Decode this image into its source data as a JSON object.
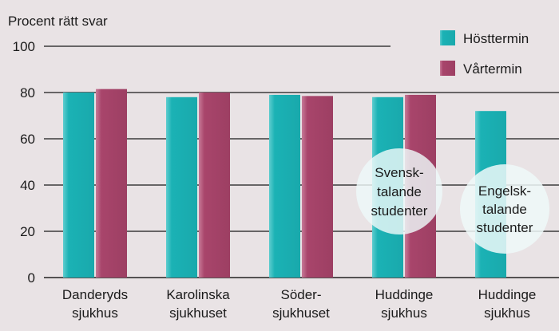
{
  "chart_data": {
    "type": "bar",
    "ylabel": "Procent rätt svar",
    "ylim": [
      0,
      100
    ],
    "yticks": [
      "0",
      "20",
      "40",
      "60",
      "80",
      "100"
    ],
    "categories": [
      [
        "Danderyds",
        "sjukhus"
      ],
      [
        "Karolinska",
        "sjukhuset"
      ],
      [
        "Söder-",
        "sjukhuset"
      ],
      [
        "Huddinge",
        "sjukhus"
      ],
      [
        "Huddinge",
        "sjukhus"
      ]
    ],
    "series": [
      {
        "name": "Hösttermin",
        "color": "#1bb2b5",
        "values": [
          80,
          78,
          79,
          78,
          72
        ]
      },
      {
        "name": "Vårtermin",
        "color": "#a8456b",
        "values": [
          81.5,
          80,
          78.5,
          79,
          null
        ]
      }
    ],
    "legend_position": "top-right",
    "grid": true,
    "annotations": [
      {
        "lines": [
          "Svensk-",
          "talande",
          "studenter"
        ]
      },
      {
        "lines": [
          "Engelsk-",
          "talande",
          "studenter"
        ]
      }
    ]
  }
}
